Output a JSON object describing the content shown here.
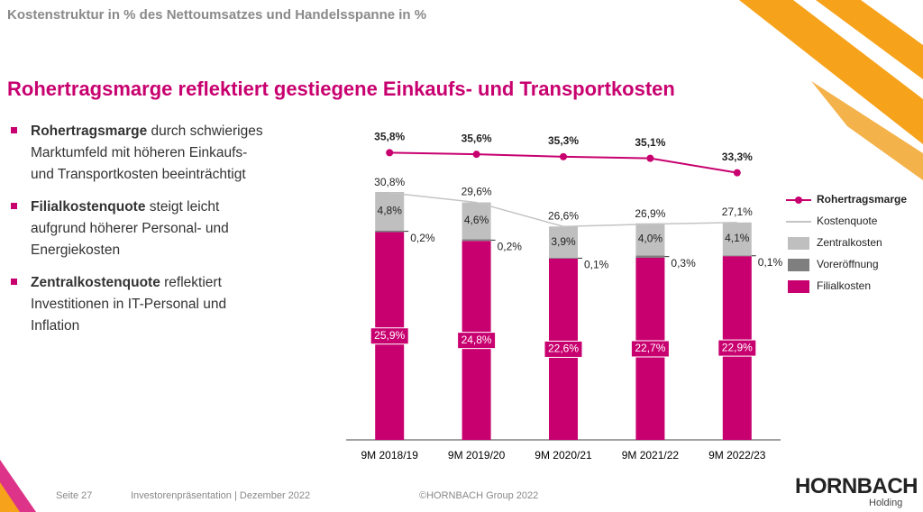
{
  "header": {
    "title": "Kostenstruktur in % des Nettoumsatzes und Handelsspanne in %"
  },
  "headline": "Rohertragsmarge reflektiert gestiegene Einkaufs- und Transportkosten",
  "bullets": [
    {
      "bold": "Rohertragsmarge",
      "text": " durch schwieriges Marktumfeld mit höheren Einkaufs- und Transportkosten beeinträchtigt"
    },
    {
      "bold": "Filialkostenquote",
      "text": " steigt leicht aufgrund höherer Personal- und Energiekosten"
    },
    {
      "bold": "Zentralkostenquote",
      "text": " reflektiert Investitionen in IT-Personal und Inflation"
    }
  ],
  "footer": {
    "page": "Seite 27",
    "presentation": "Investorenpräsentation | Dezember 2022",
    "copyright": "©HORNBACH Group 2022"
  },
  "logo": {
    "name": "HORNBACH",
    "sub": "Holding"
  },
  "chart_data": {
    "type": "bar",
    "categories": [
      "9M 2018/19",
      "9M 2019/20",
      "9M 2020/21",
      "9M 2021/22",
      "9M 2022/23"
    ],
    "ylim": [
      0,
      40
    ],
    "series": [
      {
        "name": "Filialkosten",
        "type": "bar",
        "color": "#c8006f",
        "values": [
          25.9,
          24.8,
          22.6,
          22.7,
          22.9
        ],
        "value_labels": [
          "25,9%",
          "24,8%",
          "22,6%",
          "22,7%",
          "22,9%"
        ]
      },
      {
        "name": "Voreröffnung",
        "type": "bar",
        "color": "#7f7f7f",
        "values": [
          0.2,
          0.2,
          0.1,
          0.3,
          0.1
        ],
        "value_labels": [
          "0,2%",
          "0,2%",
          "0,1%",
          "0,3%",
          "0,1%"
        ]
      },
      {
        "name": "Zentralkosten",
        "type": "bar",
        "color": "#bfbfbf",
        "values": [
          4.8,
          4.6,
          3.9,
          4.0,
          4.1
        ],
        "value_labels": [
          "4,8%",
          "4,6%",
          "3,9%",
          "4,0%",
          "4,1%"
        ]
      },
      {
        "name": "Kostenquote",
        "type": "line",
        "color": "#c4c4c4",
        "values": [
          30.8,
          29.6,
          26.6,
          26.9,
          27.1
        ],
        "value_labels": [
          "30,8%",
          "29,6%",
          "26,6%",
          "26,9%",
          "27,1%"
        ]
      },
      {
        "name": "Rohertragsmarge",
        "type": "line",
        "color": "#c8006f",
        "values": [
          35.8,
          35.6,
          35.3,
          35.1,
          33.3
        ],
        "value_labels": [
          "35,8%",
          "35,6%",
          "35,3%",
          "35,1%",
          "33,3%"
        ]
      }
    ]
  }
}
